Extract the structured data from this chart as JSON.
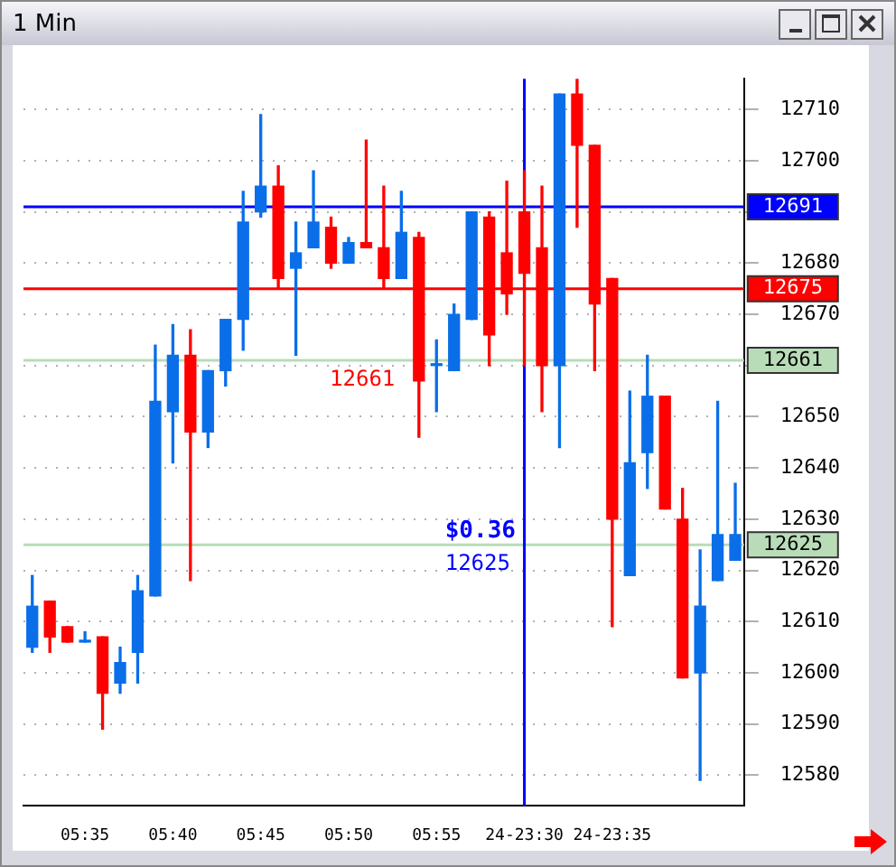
{
  "chart_data": {
    "type": "candlestick",
    "title": "1 Min",
    "categories": [
      null,
      null,
      null,
      "05:35",
      null,
      null,
      null,
      null,
      "05:40",
      null,
      null,
      null,
      null,
      "05:45",
      null,
      null,
      null,
      null,
      "05:50",
      null,
      null,
      null,
      null,
      "05:55",
      null,
      null,
      null,
      null,
      "24-23:30",
      null,
      null,
      null,
      null,
      "24-23:35",
      null,
      null,
      null,
      null,
      null,
      null,
      null
    ],
    "ohlc": [
      [
        12605,
        12619,
        12604,
        12613
      ],
      [
        12614,
        12614,
        12604,
        12607
      ],
      [
        12609,
        12609,
        12606,
        12606
      ],
      [
        12606,
        12608,
        12606,
        12606
      ],
      [
        12607,
        12607,
        12589,
        12596
      ],
      [
        12598,
        12605,
        12596,
        12602
      ],
      [
        12604,
        12619,
        12598,
        12616
      ],
      [
        12615,
        12664,
        12615,
        12653
      ],
      [
        12651,
        12668,
        12641,
        12662
      ],
      [
        12662,
        12667,
        12618,
        12647
      ],
      [
        12647,
        12659,
        12644,
        12659
      ],
      [
        12659,
        12669,
        12656,
        12669
      ],
      [
        12669,
        12694,
        12663,
        12688
      ],
      [
        12690,
        12709,
        12689,
        12695
      ],
      [
        12695,
        12699,
        12675,
        12677
      ],
      [
        12679,
        12688,
        12662,
        12682
      ],
      [
        12683,
        12698,
        12683,
        12688
      ],
      [
        12687,
        12689,
        12679,
        12680
      ],
      [
        12680,
        12685,
        12680,
        12684
      ],
      [
        12684,
        12704,
        12683,
        12683
      ],
      [
        12683,
        12695,
        12675,
        12677
      ],
      [
        12677,
        12694,
        12677,
        12686
      ],
      [
        12685,
        12686,
        12646,
        12657
      ],
      [
        12660,
        12665,
        12651,
        12660
      ],
      [
        12659,
        12672,
        12659,
        12670
      ],
      [
        12669,
        12690,
        12669,
        12690
      ],
      [
        12689,
        12690,
        12660,
        12666
      ],
      [
        12682,
        12696,
        12670,
        12674
      ],
      [
        12690,
        12698,
        12660,
        12678
      ],
      [
        12683,
        12695,
        12651,
        12660
      ],
      [
        12660,
        12713,
        12644,
        12713
      ],
      [
        12713,
        12716,
        12687,
        12703
      ],
      [
        12703,
        12703,
        12659,
        12672
      ],
      [
        12677,
        12677,
        12609,
        12630
      ],
      [
        12619,
        12655,
        12619,
        12641
      ],
      [
        12643,
        12662,
        12636,
        12654
      ],
      [
        12654,
        12654,
        12632,
        12632
      ],
      [
        12630,
        12636,
        12599,
        12599
      ],
      [
        12600,
        12624,
        12579,
        12613
      ],
      [
        12618,
        12653,
        12618,
        12627
      ],
      [
        12622,
        12637,
        12622,
        12627
      ]
    ],
    "colors": [
      "#0a6ee8",
      "#ff0000",
      "#ff0000",
      "#0a6ee8",
      "#ff0000",
      "#0a6ee8",
      "#0a6ee8",
      "#0a6ee8",
      "#0a6ee8",
      "#ff0000",
      "#0a6ee8",
      "#0a6ee8",
      "#0a6ee8",
      "#0a6ee8",
      "#ff0000",
      "#0a6ee8",
      "#0a6ee8",
      "#ff0000",
      "#0a6ee8",
      "#ff0000",
      "#ff0000",
      "#0a6ee8",
      "#ff0000",
      "#0a6ee8",
      "#0a6ee8",
      "#0a6ee8",
      "#ff0000",
      "#ff0000",
      "#ff0000",
      "#ff0000",
      "#0a6ee8",
      "#ff0000",
      "#ff0000",
      "#ff0000",
      "#0a6ee8",
      "#0a6ee8",
      "#ff0000",
      "#ff0000",
      "#0a6ee8",
      "#0a6ee8",
      "#0a6ee8"
    ],
    "ylim": [
      12574,
      12716
    ],
    "yticks": [
      12580,
      12590,
      12600,
      12610,
      12620,
      12630,
      12640,
      12650,
      {
        "value": 12660,
        "label": null
      },
      12670,
      12680,
      {
        "value": 12690,
        "label": null
      },
      12700,
      12710
    ],
    "grid": "y",
    "ref_lines": [
      {
        "axis": "y",
        "value": 12691,
        "label": "12691",
        "color": "#0000ff"
      },
      {
        "axis": "y",
        "value": 12675,
        "label": "12675",
        "color": "#ff0000"
      },
      {
        "axis": "y",
        "value": 12661,
        "label": "12661",
        "color": "#b8dcb8"
      },
      {
        "axis": "y",
        "value": 12625,
        "label": "12625",
        "color": "#b8dcb8"
      },
      {
        "axis": "x",
        "value": "24-23:30",
        "color": "#0000ff"
      }
    ],
    "annotations": [
      {
        "text": "12661",
        "y": 12661
      },
      {
        "text": "$0.36",
        "y": 12625
      },
      {
        "text": "12625",
        "y": 12625
      }
    ]
  }
}
